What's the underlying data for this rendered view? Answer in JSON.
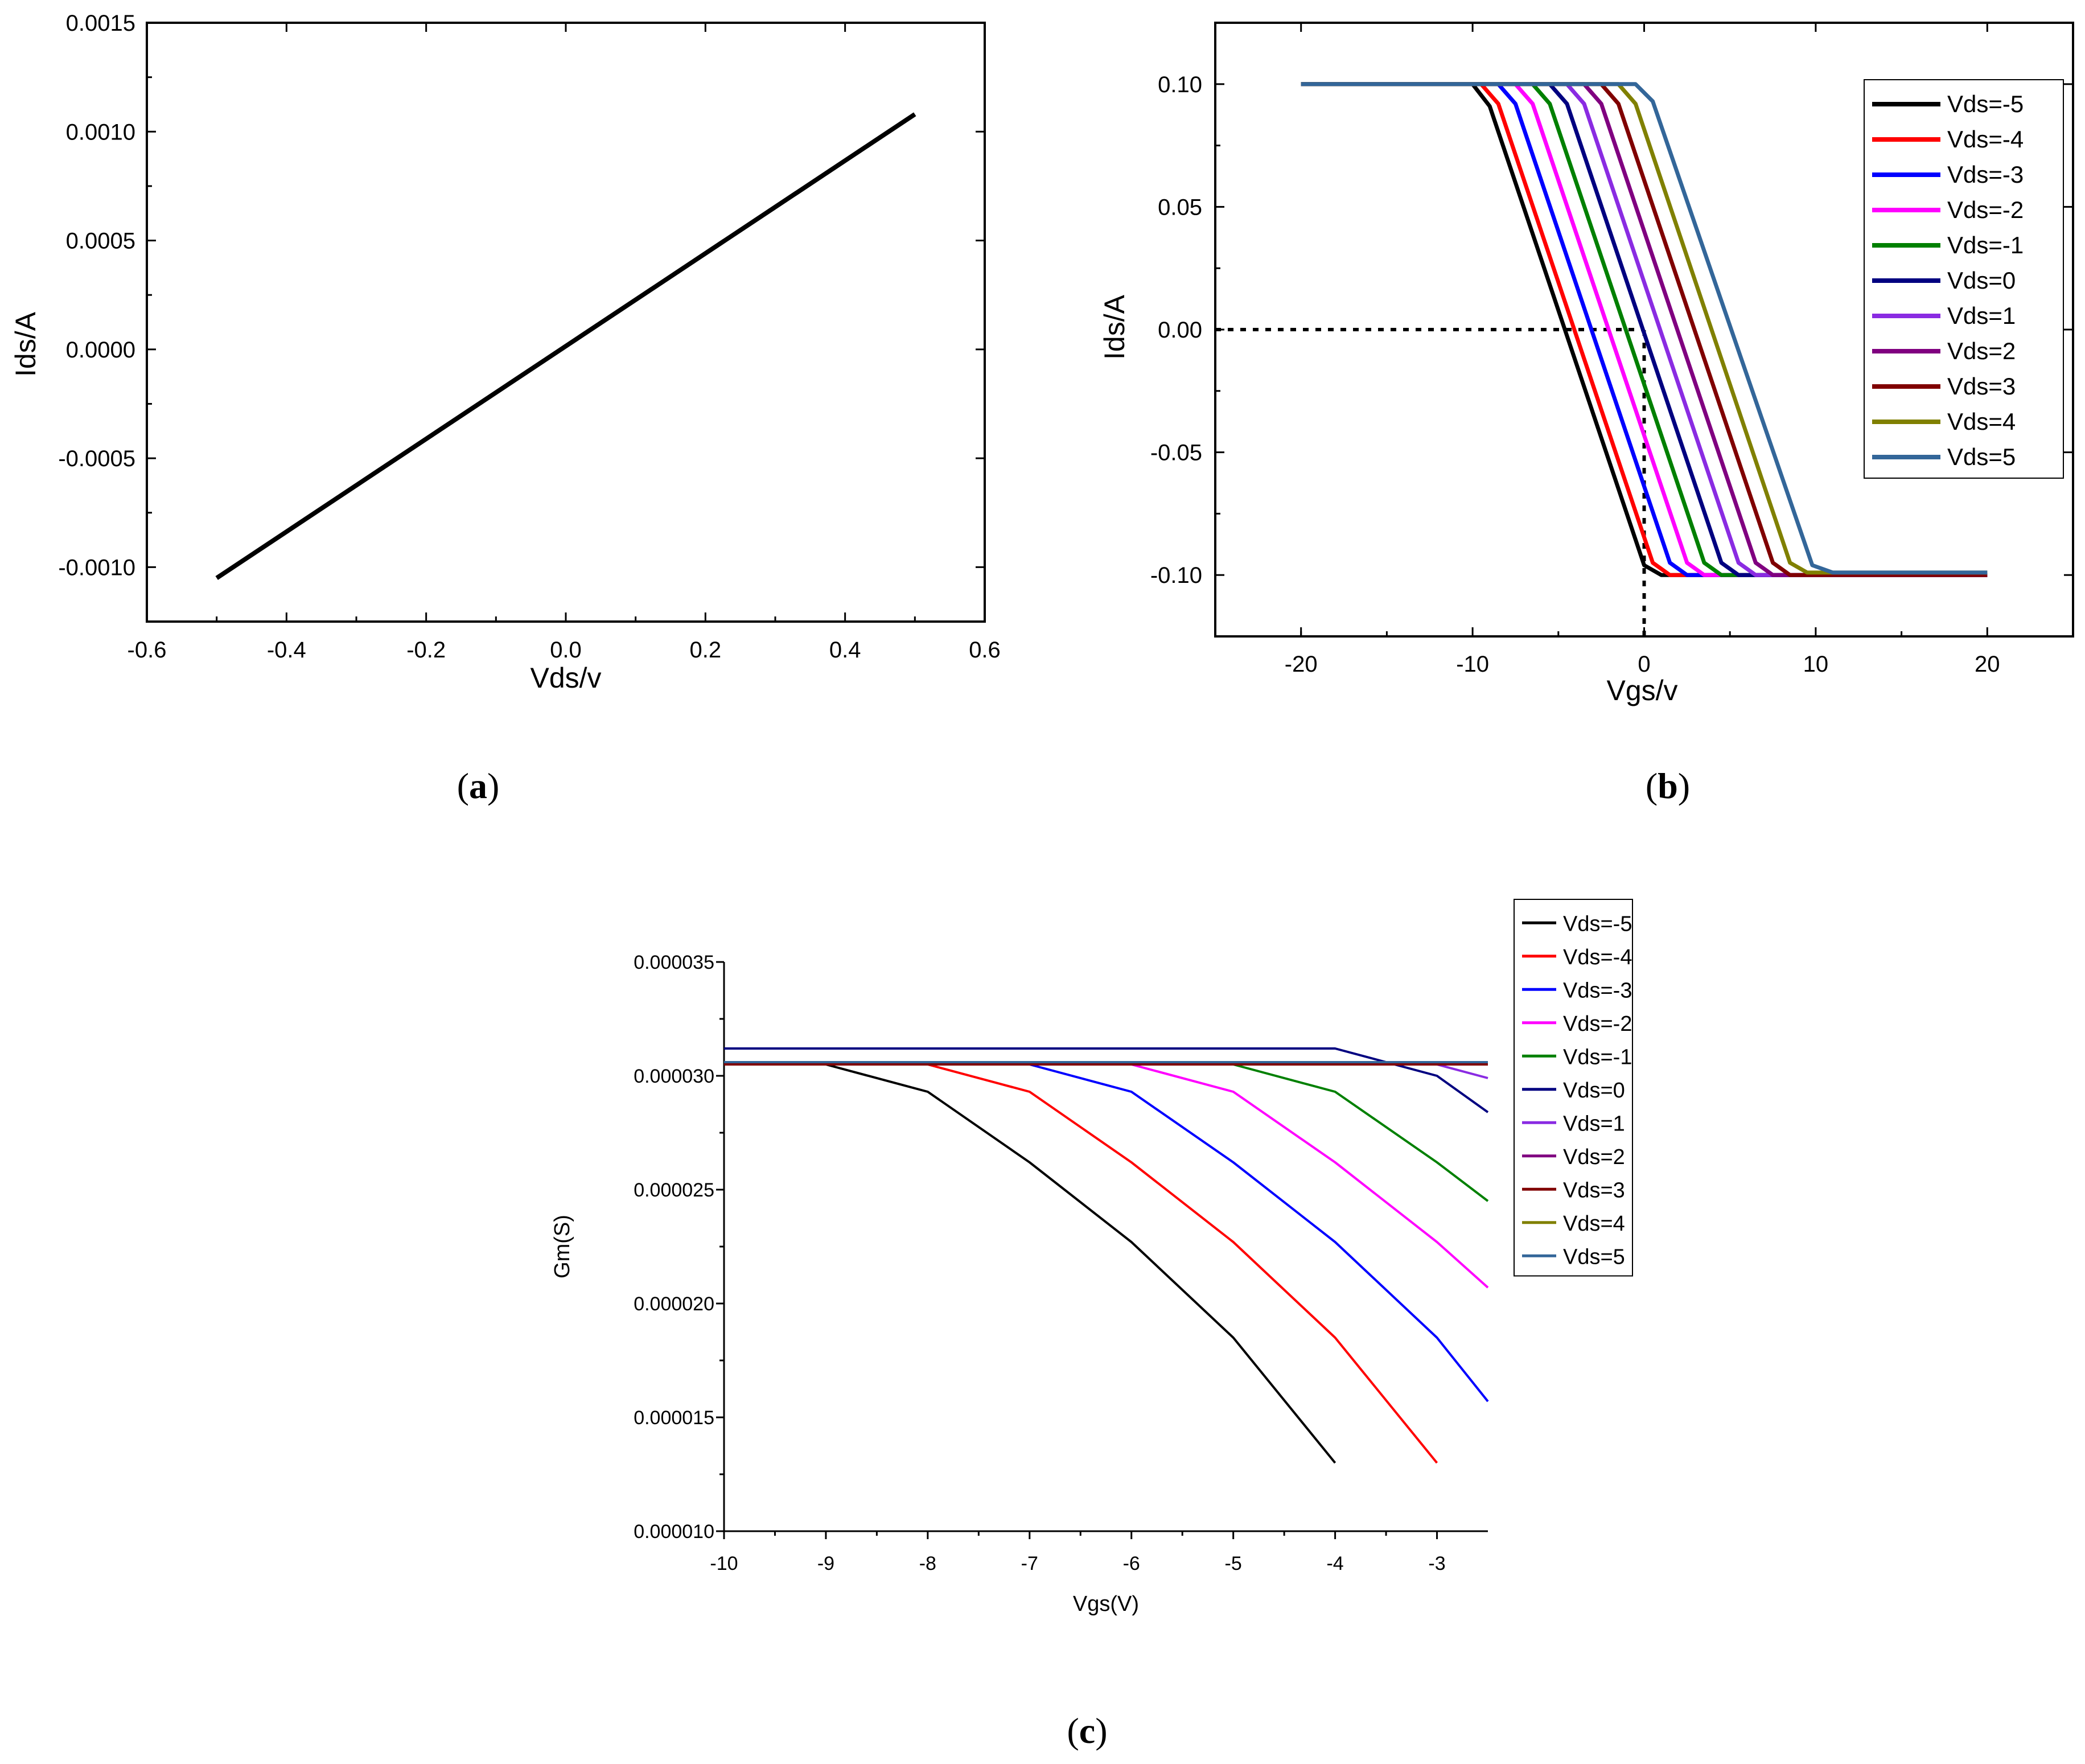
{
  "chart_data": [
    {
      "panel": "(a)",
      "type": "line",
      "title": "",
      "xlabel": "Vds/v",
      "ylabel": "Ids/A",
      "xlim": [
        -0.6,
        0.6
      ],
      "ylim": [
        -0.00125,
        0.0015
      ],
      "xticks": [
        -0.6,
        -0.4,
        -0.2,
        0.0,
        0.2,
        0.4,
        0.6
      ],
      "xtick_labels": [
        "-0.6",
        "-0.4",
        "-0.2",
        "0.0",
        "0.2",
        "0.4",
        "0.6"
      ],
      "yticks": [
        -0.001,
        -0.0005,
        0.0,
        0.0005,
        0.001,
        0.0015
      ],
      "ytick_labels": [
        "-0.0010",
        "-0.0005",
        "0.0000",
        "0.0005",
        "0.0010",
        "0.0015"
      ],
      "series": [
        {
          "name": "Ids",
          "color": "#000000",
          "x": [
            -0.5,
            0.5
          ],
          "y": [
            -0.00105,
            0.00108
          ]
        }
      ]
    },
    {
      "panel": "(b)",
      "type": "line",
      "title": "",
      "xlabel": "Vgs/v",
      "ylabel": "Ids/A",
      "xlim": [
        -25,
        25
      ],
      "ylim": [
        -0.125,
        0.125
      ],
      "xticks": [
        -20,
        -10,
        0,
        10,
        20
      ],
      "xtick_labels": [
        "-20",
        "-10",
        "0",
        "10",
        "20"
      ],
      "yticks": [
        -0.1,
        -0.05,
        0.0,
        0.05,
        0.1
      ],
      "ytick_labels": [
        "-0.10",
        "-0.05",
        "0.00",
        "0.05",
        "0.10"
      ],
      "legend_position": "top-right",
      "annotations": [
        {
          "type": "dotted-horizontal",
          "y": 0.0,
          "x_from": -25,
          "x_to": 0
        },
        {
          "type": "dotted-vertical",
          "x": 0,
          "y_from": -0.125,
          "y_to": 0.0
        }
      ],
      "series": [
        {
          "name": "Vds=-5",
          "color": "#000000",
          "x": [
            -20,
            -10,
            -9,
            0,
            1,
            20
          ],
          "y": [
            0.1,
            0.1,
            0.091,
            -0.096,
            -0.1,
            -0.1
          ]
        },
        {
          "name": "Vds=-4",
          "color": "#ff0000",
          "x": [
            -20,
            -9.5,
            -8.5,
            0.5,
            1.5,
            20
          ],
          "y": [
            0.1,
            0.1,
            0.092,
            -0.095,
            -0.1,
            -0.1
          ]
        },
        {
          "name": "Vds=-3",
          "color": "#0000ff",
          "x": [
            -20,
            -8.5,
            -7.5,
            1.5,
            2.5,
            20
          ],
          "y": [
            0.1,
            0.1,
            0.092,
            -0.095,
            -0.1,
            -0.1
          ]
        },
        {
          "name": "Vds=-2",
          "color": "#ff00ff",
          "x": [
            -20,
            -7.5,
            -6.5,
            2.5,
            3.5,
            20
          ],
          "y": [
            0.1,
            0.1,
            0.092,
            -0.095,
            -0.1,
            -0.1
          ]
        },
        {
          "name": "Vds=-1",
          "color": "#008000",
          "x": [
            -20,
            -6.5,
            -5.5,
            3.5,
            4.5,
            20
          ],
          "y": [
            0.1,
            0.1,
            0.092,
            -0.095,
            -0.1,
            -0.1
          ]
        },
        {
          "name": "Vds=0",
          "color": "#000080",
          "x": [
            -20,
            -5.5,
            -4.5,
            4.5,
            5.5,
            20
          ],
          "y": [
            0.1,
            0.1,
            0.092,
            -0.095,
            -0.1,
            -0.1
          ]
        },
        {
          "name": "Vds=1",
          "color": "#8a2be2",
          "x": [
            -20,
            -4.5,
            -3.5,
            5.5,
            6.5,
            20
          ],
          "y": [
            0.1,
            0.1,
            0.092,
            -0.095,
            -0.1,
            -0.1
          ]
        },
        {
          "name": "Vds=2",
          "color": "#800080",
          "x": [
            -20,
            -3.5,
            -2.5,
            6.5,
            7.5,
            20
          ],
          "y": [
            0.1,
            0.1,
            0.092,
            -0.095,
            -0.1,
            -0.1
          ]
        },
        {
          "name": "Vds=3",
          "color": "#800000",
          "x": [
            -20,
            -2.5,
            -1.5,
            7.5,
            8.5,
            20
          ],
          "y": [
            0.1,
            0.1,
            0.092,
            -0.095,
            -0.1,
            -0.1
          ]
        },
        {
          "name": "Vds=4",
          "color": "#808000",
          "x": [
            -20,
            -1.5,
            -0.5,
            8.5,
            9.5,
            20
          ],
          "y": [
            0.1,
            0.1,
            0.092,
            -0.095,
            -0.099,
            -0.099
          ]
        },
        {
          "name": "Vds=5",
          "color": "#336699",
          "x": [
            -20,
            -0.5,
            0.5,
            9.8,
            11,
            20
          ],
          "y": [
            0.1,
            0.1,
            0.093,
            -0.096,
            -0.099,
            -0.099
          ]
        }
      ]
    },
    {
      "panel": "(c)",
      "type": "line",
      "title": "",
      "xlabel": "Vgs(V)",
      "ylabel": "Gm(S)",
      "xlim": [
        -10,
        -2.5
      ],
      "ylim": [
        1e-05,
        3.5e-05
      ],
      "xticks": [
        -10,
        -9,
        -8,
        -7,
        -6,
        -5,
        -4,
        -3
      ],
      "xtick_labels": [
        "-10",
        "-9",
        "-8",
        "-7",
        "-6",
        "-5",
        "-4",
        "-3"
      ],
      "yticks": [
        1e-05,
        1.5e-05,
        2e-05,
        2.5e-05,
        3e-05,
        3.5e-05
      ],
      "ytick_labels": [
        "0.000010",
        "0.000015",
        "0.000020",
        "0.000025",
        "0.000030",
        "0.000035"
      ],
      "legend_position": "top-right outside",
      "series": [
        {
          "name": "Vds=-5",
          "color": "#000000",
          "x": [
            -10,
            -9,
            -8,
            -7,
            -6,
            -5,
            -4
          ],
          "y": [
            3.05e-05,
            3.05e-05,
            2.93e-05,
            2.62e-05,
            2.27e-05,
            1.85e-05,
            1.3e-05
          ]
        },
        {
          "name": "Vds=-4",
          "color": "#ff0000",
          "x": [
            -10,
            -8,
            -7,
            -6,
            -5,
            -4,
            -3
          ],
          "y": [
            3.05e-05,
            3.05e-05,
            2.93e-05,
            2.62e-05,
            2.27e-05,
            1.85e-05,
            1.3e-05
          ]
        },
        {
          "name": "Vds=-3",
          "color": "#0000ff",
          "x": [
            -10,
            -7,
            -6,
            -5,
            -4,
            -3,
            -2.5
          ],
          "y": [
            3.05e-05,
            3.05e-05,
            2.93e-05,
            2.62e-05,
            2.27e-05,
            1.85e-05,
            1.57e-05
          ]
        },
        {
          "name": "Vds=-2",
          "color": "#ff00ff",
          "x": [
            -10,
            -6,
            -5,
            -4,
            -3,
            -2.5
          ],
          "y": [
            3.05e-05,
            3.05e-05,
            2.93e-05,
            2.62e-05,
            2.27e-05,
            2.07e-05
          ]
        },
        {
          "name": "Vds=-1",
          "color": "#008000",
          "x": [
            -10,
            -5,
            -4,
            -3,
            -2.5
          ],
          "y": [
            3.05e-05,
            3.05e-05,
            2.93e-05,
            2.62e-05,
            2.45e-05
          ]
        },
        {
          "name": "Vds=0",
          "color": "#000080",
          "x": [
            -10,
            -4,
            -3,
            -2.5
          ],
          "y": [
            3.12e-05,
            3.12e-05,
            3e-05,
            2.84e-05
          ]
        },
        {
          "name": "Vds=1",
          "color": "#8a2be2",
          "x": [
            -10,
            -3,
            -2.5
          ],
          "y": [
            3.05e-05,
            3.05e-05,
            2.99e-05
          ]
        },
        {
          "name": "Vds=2",
          "color": "#800080",
          "x": [
            -10,
            -2.5
          ],
          "y": [
            3.05e-05,
            3.05e-05
          ]
        },
        {
          "name": "Vds=3",
          "color": "#800000",
          "x": [
            -10,
            -2.5
          ],
          "y": [
            3.05e-05,
            3.05e-05
          ]
        },
        {
          "name": "Vds=4",
          "color": "#808000",
          "x": [
            -10,
            -2.5
          ],
          "y": [
            3.06e-05,
            3.06e-05
          ]
        },
        {
          "name": "Vds=5",
          "color": "#336699",
          "x": [
            -10,
            -2.5
          ],
          "y": [
            3.06e-05,
            3.06e-05
          ]
        }
      ]
    }
  ],
  "captions": {
    "a": {
      "open": "(",
      "letter": "a",
      "close": ")"
    },
    "b": {
      "open": "(",
      "letter": "b",
      "close": ")"
    },
    "c": {
      "open": "(",
      "letter": "c",
      "close": ")"
    }
  }
}
